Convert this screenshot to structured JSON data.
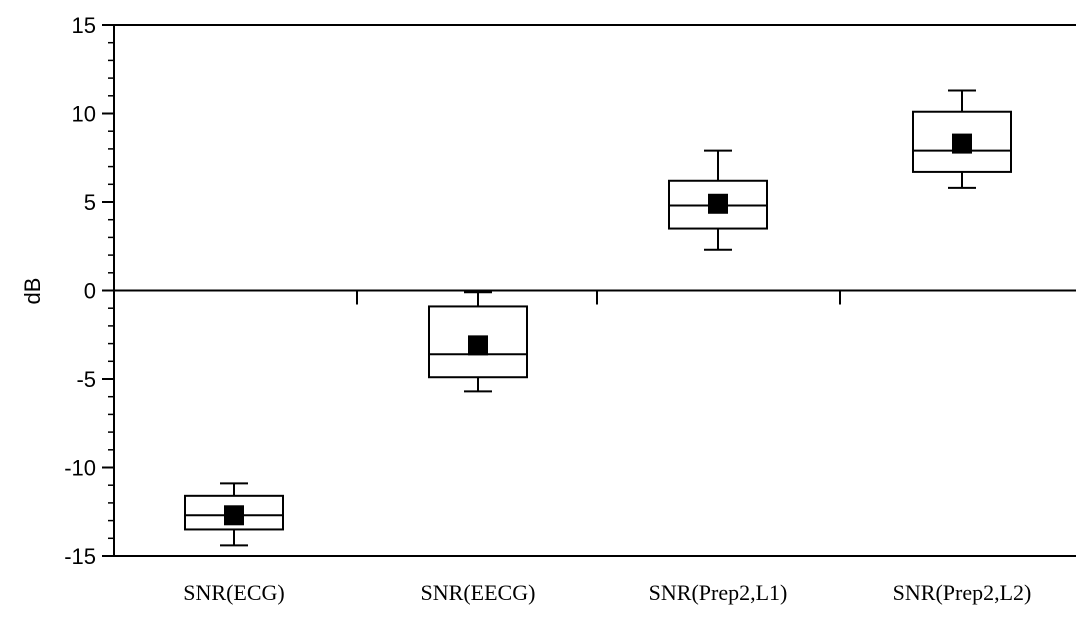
{
  "chart_data": {
    "type": "box",
    "title": "",
    "xlabel": "",
    "ylabel": "dB",
    "ylim": [
      -15,
      15
    ],
    "yticks": [
      15,
      10,
      5,
      0,
      -5,
      -10,
      -15
    ],
    "ytick_labels": [
      "15",
      "10",
      "5",
      "0",
      "-5",
      "-10",
      "-15"
    ],
    "zero_line": true,
    "grid": false,
    "categories": [
      "SNR(ECG)",
      "SNR(EECG)",
      "SNR(Prep2,L1)",
      "SNR(Prep2,L2)"
    ],
    "boxes": [
      {
        "whisker_low": -14.4,
        "q1": -13.5,
        "median": -12.7,
        "q3": -11.6,
        "whisker_high": -10.9,
        "mean": -12.7
      },
      {
        "whisker_low": -5.7,
        "q1": -4.9,
        "median": -3.6,
        "q3": -0.9,
        "whisker_high": -0.1,
        "mean": -3.1
      },
      {
        "whisker_low": 2.3,
        "q1": 3.5,
        "median": 4.8,
        "q3": 6.2,
        "whisker_high": 7.9,
        "mean": 4.9
      },
      {
        "whisker_low": 5.8,
        "q1": 6.7,
        "median": 7.9,
        "q3": 10.1,
        "whisker_high": 11.3,
        "mean": 8.3
      }
    ]
  }
}
